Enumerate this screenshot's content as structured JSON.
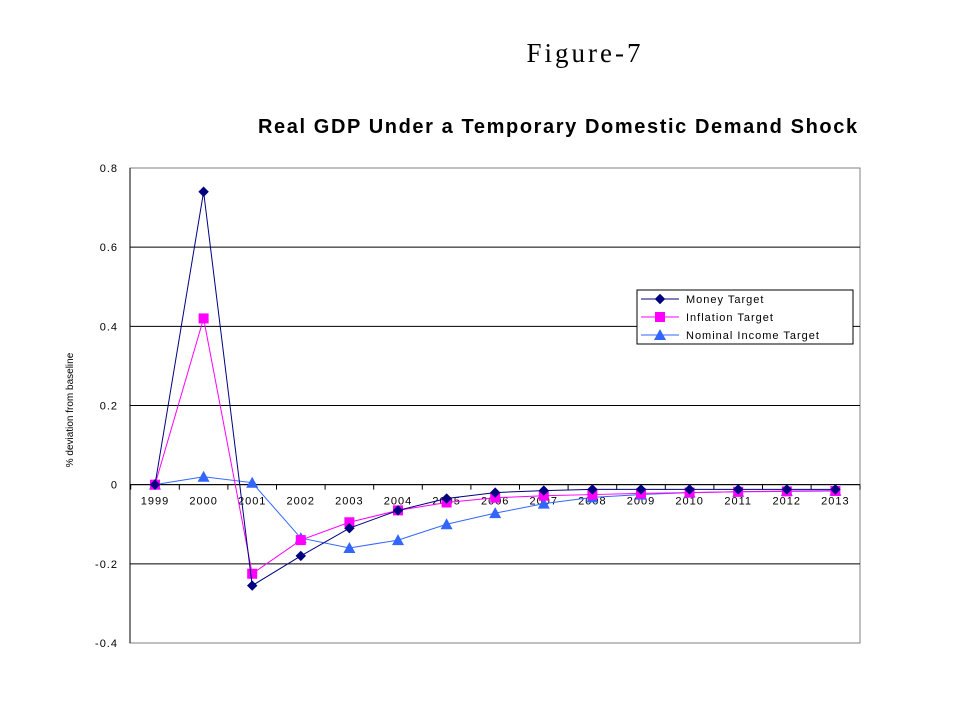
{
  "figure_label": "Figure-7",
  "chart_data": {
    "type": "line",
    "title": "Real GDP Under a Temporary Domestic Demand Shock",
    "xlabel": "",
    "ylabel": "% deviation from baseline",
    "categories": [
      "1999",
      "2000",
      "2001",
      "2002",
      "2003",
      "2004",
      "2005",
      "2006",
      "2007",
      "2008",
      "2009",
      "2010",
      "2011",
      "2012",
      "2013"
    ],
    "y_ticks": [
      "0.8",
      "0.6",
      "0.4",
      "0.2",
      "0",
      "-0.2",
      "-0.4"
    ],
    "ylim": [
      -0.4,
      0.8
    ],
    "grid": "horizontal",
    "legend_position": "right",
    "series": [
      {
        "name": "Money Target",
        "color": "#000080",
        "marker": "diamond",
        "values": [
          0,
          0.74,
          -0.255,
          -0.18,
          -0.11,
          -0.065,
          -0.035,
          -0.02,
          -0.015,
          -0.012,
          -0.012,
          -0.012,
          -0.012,
          -0.012,
          -0.012
        ]
      },
      {
        "name": "Inflation Target",
        "color": "#ff00ff",
        "marker": "square",
        "values": [
          0,
          0.42,
          -0.225,
          -0.14,
          -0.095,
          -0.065,
          -0.045,
          -0.033,
          -0.028,
          -0.025,
          -0.022,
          -0.02,
          -0.018,
          -0.017,
          -0.016
        ]
      },
      {
        "name": "Nominal Income Target",
        "color": "#3366ff",
        "marker": "triangle",
        "values": [
          0,
          0.02,
          0.005,
          -0.135,
          -0.16,
          -0.14,
          -0.1,
          -0.072,
          -0.048,
          -0.032,
          -0.025,
          -0.02,
          -0.018,
          -0.016,
          -0.015
        ]
      }
    ]
  }
}
